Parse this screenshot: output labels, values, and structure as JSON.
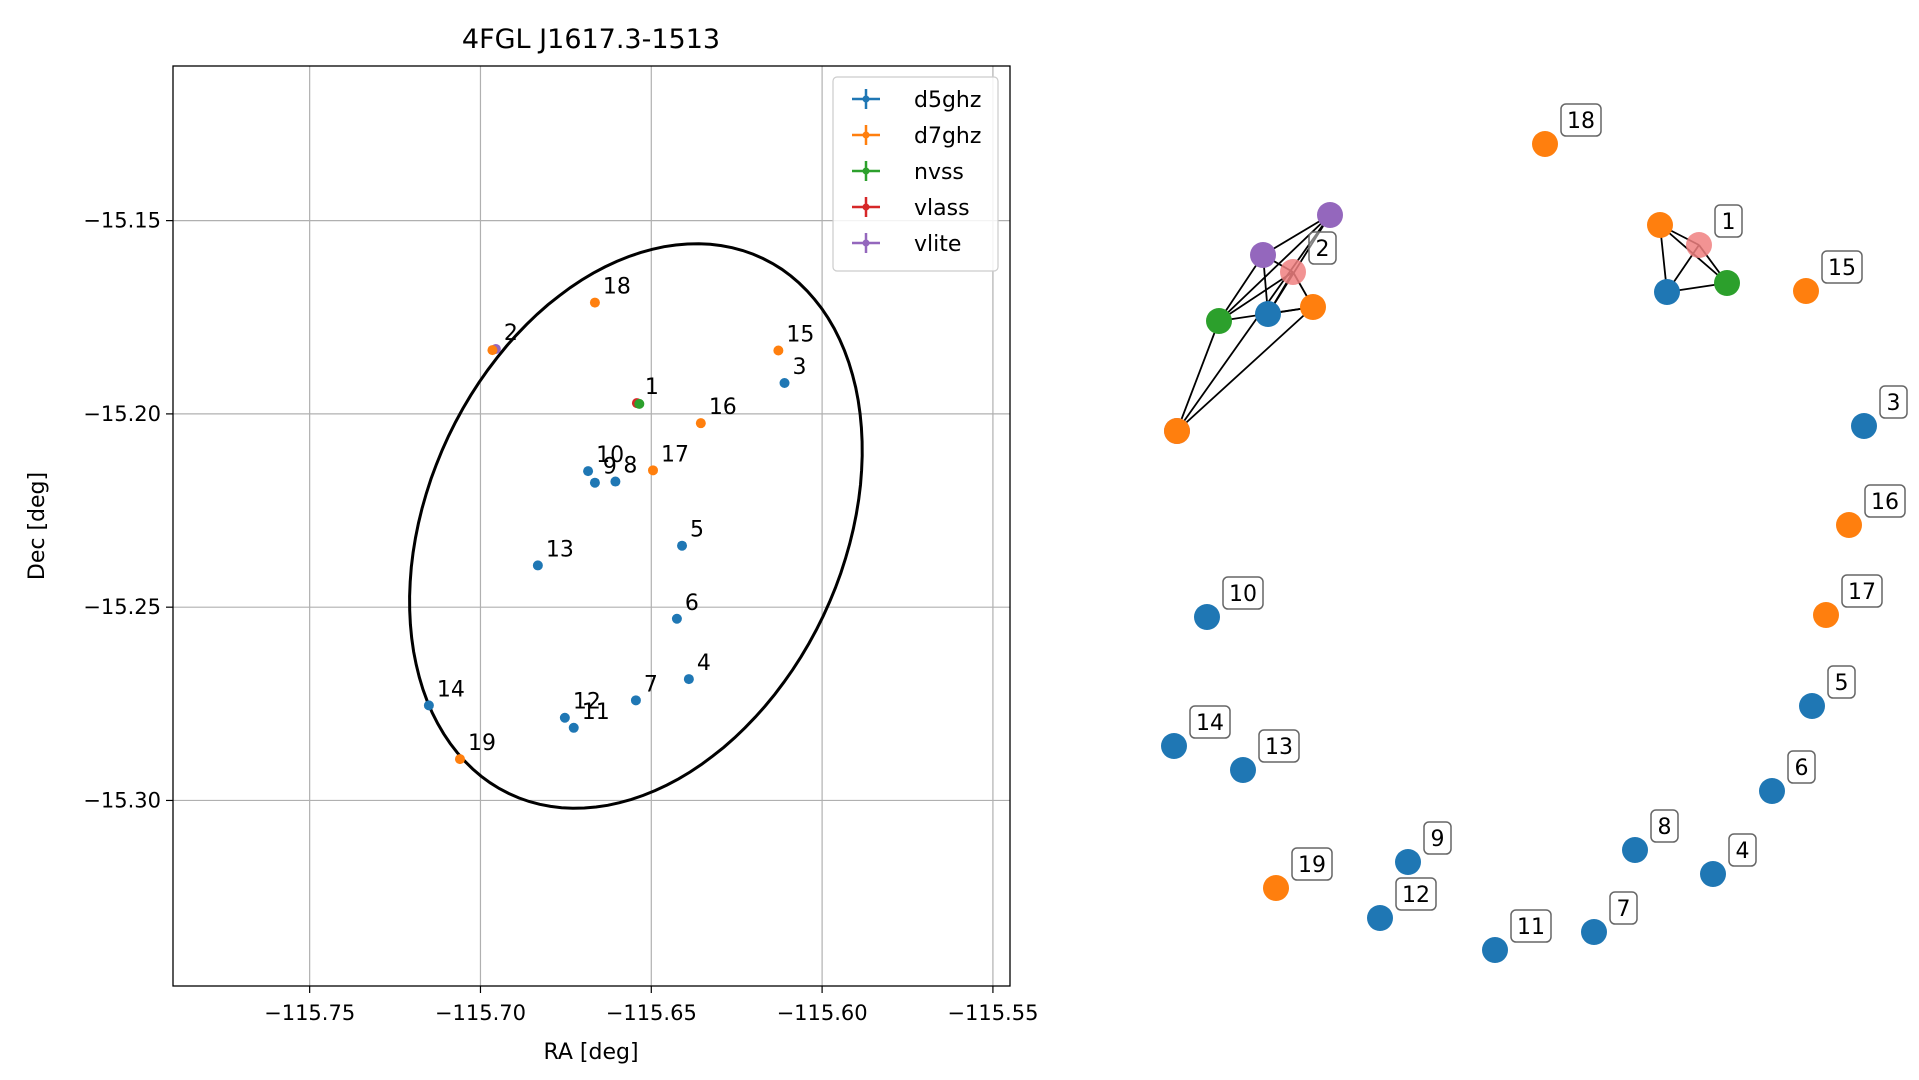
{
  "colors": {
    "d5ghz": "#1f77b4",
    "d7ghz": "#ff7f0e",
    "nvss": "#2ca02c",
    "vlass": "#d62728",
    "vlite": "#9467bd",
    "highlight": "#f08080"
  },
  "chart_data": [
    {
      "type": "scatter",
      "title": "4FGL J1617.3-1513",
      "xlabel": "RA [deg]",
      "ylabel": "Dec [deg]",
      "xlim": [
        -115.79,
        -115.545
      ],
      "ylim": [
        -15.348,
        -15.11
      ],
      "xticks": [
        -115.75,
        -115.7,
        -115.65,
        -115.6,
        -115.55
      ],
      "xtick_labels": [
        "−115.75",
        "−115.70",
        "−115.65",
        "−115.60",
        "−115.55"
      ],
      "yticks": [
        -15.15,
        -15.2,
        -15.25,
        -15.3
      ],
      "ytick_labels": [
        "−15.15",
        "−15.20",
        "−15.25",
        "−15.30"
      ],
      "grid": true,
      "legend_position": "top-right",
      "legend": [
        "d5ghz",
        "d7ghz",
        "nvss",
        "vlass",
        "vlite"
      ],
      "ellipse": {
        "center_ra": -115.6545,
        "center_dec": -15.229,
        "semi_major": 0.079,
        "semi_minor": 0.059,
        "angle_deg": 55
      },
      "points": [
        {
          "label": "1",
          "series": "vlass",
          "ra": -115.6542,
          "dec": -15.1972
        },
        {
          "label": "",
          "series": "nvss",
          "ra": -115.6535,
          "dec": -15.1974
        },
        {
          "label": "2",
          "series": "vlite",
          "ra": -115.6955,
          "dec": -15.1832
        },
        {
          "label": "",
          "series": "d7ghz",
          "ra": -115.6965,
          "dec": -15.1835
        },
        {
          "label": "3",
          "series": "d5ghz",
          "ra": -115.611,
          "dec": -15.192
        },
        {
          "label": "4",
          "series": "d5ghz",
          "ra": -115.639,
          "dec": -15.2686
        },
        {
          "label": "5",
          "series": "d5ghz",
          "ra": -115.641,
          "dec": -15.2341
        },
        {
          "label": "6",
          "series": "d5ghz",
          "ra": -115.6425,
          "dec": -15.253
        },
        {
          "label": "7",
          "series": "d5ghz",
          "ra": -115.6545,
          "dec": -15.2741
        },
        {
          "label": "8",
          "series": "d5ghz",
          "ra": -115.6605,
          "dec": -15.2175
        },
        {
          "label": "9",
          "series": "d5ghz",
          "ra": -115.6665,
          "dec": -15.2178
        },
        {
          "label": "10",
          "series": "d5ghz",
          "ra": -115.6685,
          "dec": -15.2148
        },
        {
          "label": "11",
          "series": "d5ghz",
          "ra": -115.6727,
          "dec": -15.2812
        },
        {
          "label": "12",
          "series": "d5ghz",
          "ra": -115.6753,
          "dec": -15.2786
        },
        {
          "label": "13",
          "series": "d5ghz",
          "ra": -115.6832,
          "dec": -15.2392
        },
        {
          "label": "14",
          "series": "d5ghz",
          "ra": -115.7151,
          "dec": -15.2754
        },
        {
          "label": "15",
          "series": "d7ghz",
          "ra": -115.6128,
          "dec": -15.1836
        },
        {
          "label": "16",
          "series": "d7ghz",
          "ra": -115.6355,
          "dec": -15.2024
        },
        {
          "label": "17",
          "series": "d7ghz",
          "ra": -115.6495,
          "dec": -15.2146
        },
        {
          "label": "18",
          "series": "d7ghz",
          "ra": -115.6665,
          "dec": -15.1712
        },
        {
          "label": "19",
          "series": "d7ghz",
          "ra": -115.706,
          "dec": -15.2893
        }
      ]
    },
    {
      "type": "network",
      "nodes": [
        {
          "id": "1",
          "label": "1",
          "series": "vlass",
          "highlight": true
        },
        {
          "id": "2",
          "label": "2",
          "series": "vlite",
          "highlight": true
        },
        {
          "id": "3",
          "label": "3",
          "series": "d5ghz"
        },
        {
          "id": "4",
          "label": "4",
          "series": "d5ghz"
        },
        {
          "id": "5",
          "label": "5",
          "series": "d5ghz"
        },
        {
          "id": "6",
          "label": "6",
          "series": "d5ghz"
        },
        {
          "id": "7",
          "label": "7",
          "series": "d5ghz"
        },
        {
          "id": "8",
          "label": "8",
          "series": "d5ghz"
        },
        {
          "id": "9",
          "label": "9",
          "series": "d5ghz"
        },
        {
          "id": "10",
          "label": "10",
          "series": "d5ghz"
        },
        {
          "id": "11",
          "label": "11",
          "series": "d5ghz"
        },
        {
          "id": "12",
          "label": "12",
          "series": "d5ghz"
        },
        {
          "id": "13",
          "label": "13",
          "series": "d5ghz"
        },
        {
          "id": "14",
          "label": "14",
          "series": "d5ghz"
        },
        {
          "id": "15",
          "label": "15",
          "series": "d7ghz"
        },
        {
          "id": "16",
          "label": "16",
          "series": "d7ghz"
        },
        {
          "id": "17",
          "label": "17",
          "series": "d7ghz"
        },
        {
          "id": "18",
          "label": "18",
          "series": "d7ghz"
        },
        {
          "id": "19",
          "label": "19",
          "series": "d7ghz"
        },
        {
          "id": "c1a",
          "label": "",
          "series": "d7ghz"
        },
        {
          "id": "c1b",
          "label": "",
          "series": "d5ghz"
        },
        {
          "id": "c1c",
          "label": "",
          "series": "nvss"
        },
        {
          "id": "c2a",
          "label": "",
          "series": "vlite"
        },
        {
          "id": "c2b",
          "label": "",
          "series": "vlite"
        },
        {
          "id": "c2c",
          "label": "",
          "series": "vlite"
        },
        {
          "id": "c2d",
          "label": "",
          "series": "nvss"
        },
        {
          "id": "c2e",
          "label": "",
          "series": "d5ghz"
        },
        {
          "id": "c2f",
          "label": "",
          "series": "d7ghz"
        },
        {
          "id": "c2g",
          "label": "",
          "series": "d7ghz"
        }
      ],
      "edges": [
        [
          "c1a",
          "1"
        ],
        [
          "c1a",
          "c1b"
        ],
        [
          "c1a",
          "c1c"
        ],
        [
          "1",
          "c1b"
        ],
        [
          "1",
          "c1c"
        ],
        [
          "c1b",
          "c1c"
        ],
        [
          "c2a",
          "c2b"
        ],
        [
          "c2a",
          "c2e"
        ],
        [
          "c2a",
          "2"
        ],
        [
          "c2a",
          "c2d"
        ],
        [
          "c2c",
          "c2d"
        ],
        [
          "c2c",
          "c2f"
        ],
        [
          "c2b",
          "c2e"
        ],
        [
          "c2b",
          "c2d"
        ],
        [
          "c2b",
          "c2g"
        ],
        [
          "c2d",
          "2"
        ],
        [
          "c2d",
          "c2f"
        ],
        [
          "c2e",
          "2"
        ],
        [
          "c2e",
          "c2f"
        ],
        [
          "c2f",
          "2"
        ]
      ]
    }
  ]
}
